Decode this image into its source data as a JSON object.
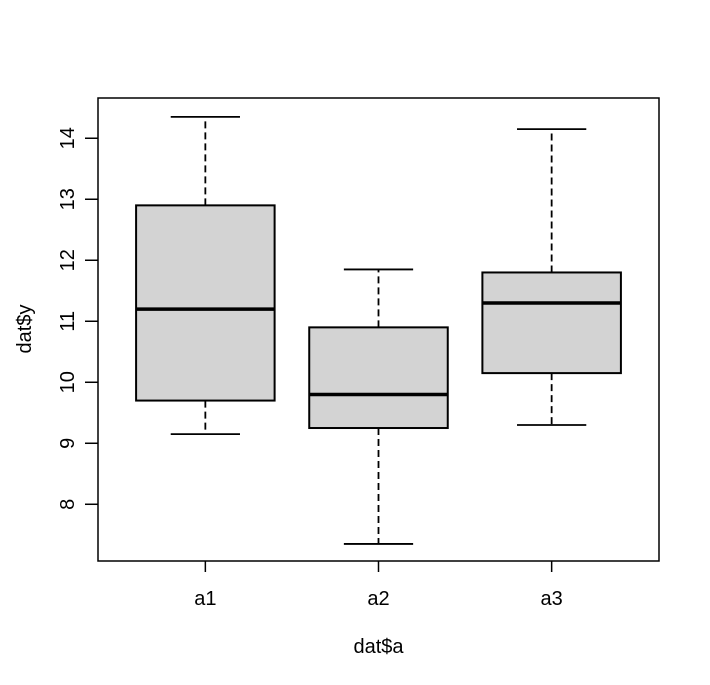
{
  "figure": {
    "background": "#ffffff"
  },
  "chart_data": {
    "type": "boxplot",
    "xlabel": "dat$a",
    "ylabel": "dat$y",
    "categories": [
      "a1",
      "a2",
      "a3"
    ],
    "x_positions": [
      1,
      2,
      3
    ],
    "series": [
      {
        "name": "a1",
        "whisker_low": 9.15,
        "q1": 9.7,
        "median": 11.2,
        "q3": 12.9,
        "whisker_high": 14.35
      },
      {
        "name": "a2",
        "whisker_low": 7.35,
        "q1": 9.25,
        "median": 9.8,
        "q3": 10.9,
        "whisker_high": 11.85
      },
      {
        "name": "a3",
        "whisker_low": 9.3,
        "q1": 10.15,
        "median": 11.3,
        "q3": 11.8,
        "whisker_high": 14.15
      }
    ],
    "y_ticks": [
      8,
      9,
      10,
      11,
      12,
      13,
      14
    ],
    "ylim": [
      7.07,
      14.66
    ],
    "xlim": [
      0.38,
      3.62
    ],
    "box_width": 0.8,
    "grid": false,
    "legend": false,
    "style": {
      "box_fill": "#d3d3d3",
      "stroke": "#000000",
      "whisker_style": "dashed"
    }
  }
}
